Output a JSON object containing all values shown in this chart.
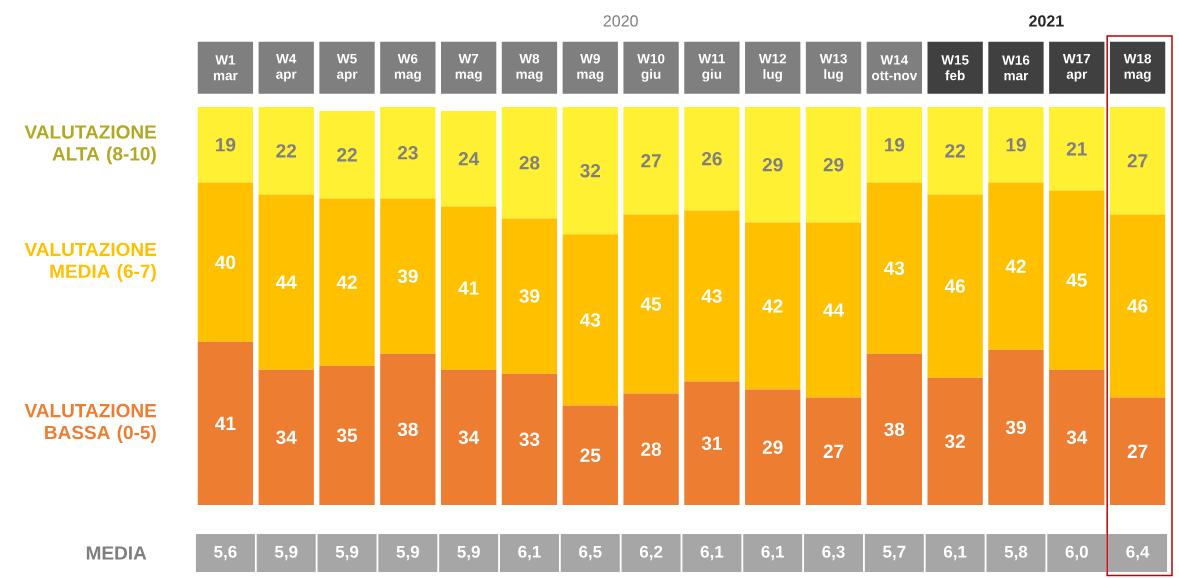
{
  "chart_data": [
    {
      "type": "bar",
      "stacked": true,
      "data_labels": true,
      "legend": "left",
      "categories": [
        "W1 mar",
        "W4 apr",
        "W5 apr",
        "W6 mag",
        "W7 mag",
        "W8 mag",
        "W9 mag",
        "W10 giu",
        "W11 giu",
        "W12 lug",
        "W13 lug",
        "W14 ott-nov",
        "W15 feb",
        "W16 mar",
        "W17 apr",
        "W18 mag"
      ],
      "series": [
        {
          "name": "VALUTAZIONE BASSA (0-5)",
          "color": "#ed7d31",
          "values": [
            41,
            34,
            35,
            38,
            34,
            33,
            25,
            28,
            31,
            29,
            27,
            38,
            32,
            39,
            34,
            27
          ]
        },
        {
          "name": "VALUTAZIONE MEDIA (6-7)",
          "color": "#ffc000",
          "values": [
            40,
            44,
            42,
            39,
            41,
            39,
            43,
            45,
            43,
            42,
            44,
            43,
            46,
            42,
            45,
            46
          ]
        },
        {
          "name": "VALUTAZIONE ALTA (8-10)",
          "color": "#fff033",
          "values": [
            19,
            22,
            22,
            23,
            24,
            28,
            32,
            27,
            26,
            29,
            29,
            19,
            22,
            19,
            21,
            27
          ]
        }
      ],
      "annotations": [
        "2020",
        "2021"
      ]
    },
    {
      "type": "other",
      "ylabel": "MEDIA",
      "color": "#a6a6a6",
      "annotations": [
        "5,6",
        "5,9",
        "5,9",
        "5,9",
        "5,9",
        "6,1",
        "6,5",
        "6,2",
        "6,1",
        "6,1",
        "6,3",
        "5,7",
        "6,1",
        "5,8",
        "6,0",
        "6,4"
      ]
    }
  ]
}
